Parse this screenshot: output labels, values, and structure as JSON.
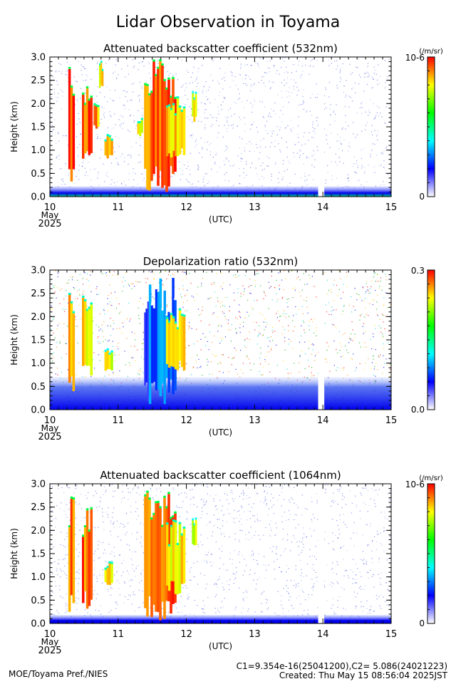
{
  "page": {
    "title": "Lidar Observation in Toyama",
    "footer_left": "MOE/Toyama Pref./NIES",
    "footer_calib": "C1=9.354e-16(25041200),C2= 5.086(24021223)",
    "footer_created": "Created: Thu May 15 08:56:04 2025JST"
  },
  "chart_data": [
    {
      "type": "heatmap",
      "title": "Attenuated backscatter coefficient (532nm)",
      "ylabel": "Height (km)",
      "xlabel": "(UTC)",
      "x_month": "May",
      "x_year": "2025",
      "x_ticks": [
        "10",
        "11",
        "12",
        "13",
        "14",
        "15"
      ],
      "x_range": [
        10,
        15
      ],
      "y_ticks": [
        "0.0",
        "0.5",
        "1.0",
        "1.5",
        "2.0",
        "2.5",
        "3.0"
      ],
      "y_range": [
        0,
        3
      ],
      "colorbar": {
        "unit": "(/m/sr)",
        "max_label": "10-6",
        "min_label": "0",
        "colors": [
          "#ffffff",
          "#0000ff",
          "#00ffff",
          "#00ff00",
          "#ffff00",
          "#ff0000"
        ]
      },
      "data_gap": [
        13.93,
        14.02
      ],
      "clouds": [
        {
          "x0": 10.27,
          "x1": 10.36,
          "y0": 0.15,
          "y1": 3.0,
          "level": 1.0
        },
        {
          "x0": 10.47,
          "x1": 10.62,
          "y0": 0.6,
          "y1": 2.6,
          "level": 1.0
        },
        {
          "x0": 10.64,
          "x1": 10.72,
          "y0": 1.4,
          "y1": 2.2,
          "level": 0.95
        },
        {
          "x0": 10.8,
          "x1": 10.92,
          "y0": 0.8,
          "y1": 1.3,
          "level": 0.9
        },
        {
          "x0": 10.72,
          "x1": 10.78,
          "y0": 2.3,
          "y1": 2.9,
          "level": 0.9
        },
        {
          "x0": 11.28,
          "x1": 11.36,
          "y0": 1.3,
          "y1": 1.7,
          "level": 0.9
        },
        {
          "x0": 11.38,
          "x1": 11.85,
          "y0": 0.1,
          "y1": 3.0,
          "level": 1.0
        },
        {
          "x0": 11.7,
          "x1": 11.98,
          "y0": 0.8,
          "y1": 2.2,
          "level": 0.9
        },
        {
          "x0": 12.08,
          "x1": 12.15,
          "y0": 1.6,
          "y1": 2.3,
          "level": 0.85
        }
      ],
      "boundary_layer_top_km": 0.22
    },
    {
      "type": "heatmap",
      "title": "Depolarization ratio (532nm)",
      "ylabel": "Height (km)",
      "xlabel": "(UTC)",
      "x_month": "May",
      "x_year": "2025",
      "x_ticks": [
        "10",
        "11",
        "12",
        "13",
        "14",
        "15"
      ],
      "x_range": [
        10,
        15
      ],
      "y_ticks": [
        "0.0",
        "0.5",
        "1.0",
        "1.5",
        "2.0",
        "2.5",
        "3.0"
      ],
      "y_range": [
        0,
        3
      ],
      "colorbar": {
        "unit": "",
        "max_label": "0.3",
        "min_label": "0.0",
        "colors": [
          "#ffffff",
          "#0000ff",
          "#00ffff",
          "#00ff00",
          "#ffff00",
          "#ff0000"
        ]
      },
      "data_gap": [
        13.93,
        14.02
      ],
      "clouds": [
        {
          "x0": 10.27,
          "x1": 10.36,
          "y0": 0.2,
          "y1": 3.0,
          "level": 0.9
        },
        {
          "x0": 10.47,
          "x1": 10.62,
          "y0": 0.6,
          "y1": 2.6,
          "level": 0.9
        },
        {
          "x0": 10.8,
          "x1": 10.92,
          "y0": 0.8,
          "y1": 1.3,
          "level": 0.85
        },
        {
          "x0": 11.38,
          "x1": 11.45,
          "y0": 0.1,
          "y1": 3.0,
          "level": 0.3
        },
        {
          "x0": 11.45,
          "x1": 11.85,
          "y0": 0.1,
          "y1": 3.0,
          "level": 0.35
        },
        {
          "x0": 11.7,
          "x1": 11.98,
          "y0": 0.8,
          "y1": 2.2,
          "level": 0.9
        }
      ],
      "boundary_layer_top_km": 0.7
    },
    {
      "type": "heatmap",
      "title": "Attenuated backscatter coefficient (1064nm)",
      "ylabel": "Height (km)",
      "xlabel": "(UTC)",
      "x_month": "May",
      "x_year": "2025",
      "x_ticks": [
        "10",
        "11",
        "12",
        "13",
        "14",
        "15"
      ],
      "x_range": [
        10,
        15
      ],
      "y_ticks": [
        "0.0",
        "0.5",
        "1.0",
        "1.5",
        "2.0",
        "2.5",
        "3.0"
      ],
      "y_range": [
        0,
        3
      ],
      "colorbar": {
        "unit": "(/m/sr)",
        "max_label": "10-6",
        "min_label": "0",
        "colors": [
          "#ffffff",
          "#0000ff",
          "#00ffff",
          "#00ff00",
          "#ffff00",
          "#ff0000"
        ]
      },
      "data_gap": [
        13.93,
        14.02
      ],
      "clouds": [
        {
          "x0": 10.27,
          "x1": 10.36,
          "y0": 0.15,
          "y1": 3.0,
          "level": 1.0
        },
        {
          "x0": 10.47,
          "x1": 10.62,
          "y0": 0.3,
          "y1": 2.6,
          "level": 1.0
        },
        {
          "x0": 10.8,
          "x1": 10.92,
          "y0": 0.8,
          "y1": 1.3,
          "level": 0.9
        },
        {
          "x0": 11.38,
          "x1": 11.85,
          "y0": 0.05,
          "y1": 3.0,
          "level": 1.0
        },
        {
          "x0": 11.7,
          "x1": 11.98,
          "y0": 0.6,
          "y1": 2.2,
          "level": 0.9
        },
        {
          "x0": 12.08,
          "x1": 12.15,
          "y0": 1.6,
          "y1": 2.3,
          "level": 0.85
        }
      ],
      "boundary_layer_top_km": 0.18
    }
  ]
}
